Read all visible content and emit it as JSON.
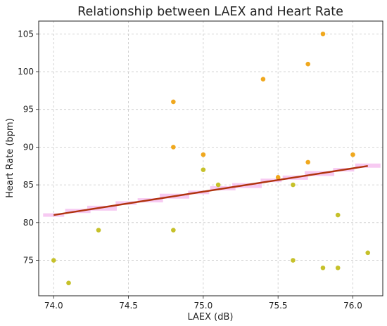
{
  "chart_data": {
    "type": "scatter",
    "title": "Relationship between LAEX and Heart Rate",
    "xlabel": "LAEX (dB)",
    "ylabel": "Heart Rate (bpm)",
    "xlim": [
      73.9,
      76.2
    ],
    "ylim": [
      70.3,
      106.7
    ],
    "grid": true,
    "x_ticks": [
      74.0,
      74.5,
      75.0,
      75.5,
      76.0
    ],
    "x_tick_labels": [
      "74.0",
      "74.5",
      "75.0",
      "75.5",
      "76.0"
    ],
    "y_ticks": [
      75,
      80,
      85,
      90,
      95,
      100,
      105
    ],
    "y_tick_labels": [
      "75",
      "80",
      "85",
      "90",
      "95",
      "100",
      "105"
    ],
    "series": [
      {
        "color": "#f0a81e",
        "points": [
          {
            "x": 74.8,
            "y": 96
          },
          {
            "x": 74.8,
            "y": 90
          },
          {
            "x": 75.0,
            "y": 89
          },
          {
            "x": 75.4,
            "y": 99
          },
          {
            "x": 75.5,
            "y": 86
          },
          {
            "x": 75.7,
            "y": 101
          },
          {
            "x": 75.7,
            "y": 88
          },
          {
            "x": 75.8,
            "y": 105
          },
          {
            "x": 76.0,
            "y": 89
          }
        ]
      },
      {
        "color": "#c6c12a",
        "points": [
          {
            "x": 74.0,
            "y": 75
          },
          {
            "x": 74.1,
            "y": 72
          },
          {
            "x": 74.3,
            "y": 79
          },
          {
            "x": 74.8,
            "y": 79
          },
          {
            "x": 75.0,
            "y": 87
          },
          {
            "x": 75.1,
            "y": 85
          },
          {
            "x": 75.6,
            "y": 85
          },
          {
            "x": 75.6,
            "y": 75
          },
          {
            "x": 75.8,
            "y": 74
          },
          {
            "x": 75.9,
            "y": 81
          },
          {
            "x": 75.9,
            "y": 74
          },
          {
            "x": 76.1,
            "y": 76
          }
        ]
      }
    ],
    "trend_line": {
      "x": [
        74.0,
        76.1
      ],
      "y": [
        81.0,
        87.5
      ],
      "color": "#b0330e",
      "band_color": "#f4b8ee"
    }
  }
}
